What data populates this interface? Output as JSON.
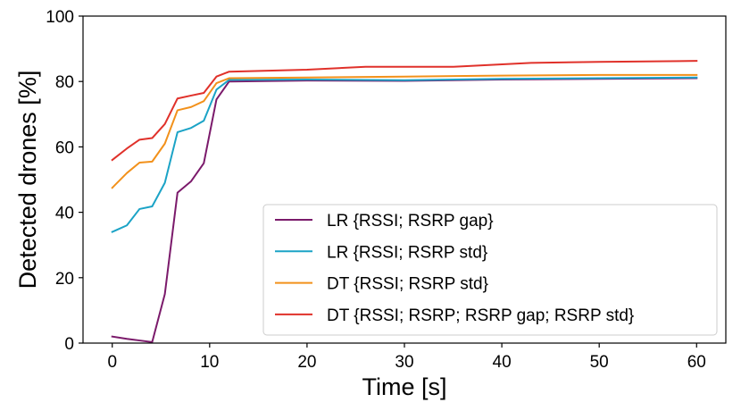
{
  "chart_data": {
    "type": "line",
    "title": "",
    "xlabel": "Time [s]",
    "ylabel": "Detected drones [%]",
    "xlim": [
      -3,
      63
    ],
    "ylim": [
      0,
      100
    ],
    "xticks": [
      0,
      10,
      20,
      30,
      40,
      50,
      60
    ],
    "yticks": [
      0,
      20,
      40,
      60,
      80,
      100
    ],
    "grid": false,
    "legend_position": "bottom-right",
    "series": [
      {
        "name": "LR {RSSI; RSRP gap}",
        "color": "#7b1a6b",
        "x": [
          0,
          1.5,
          2.8,
          4.1,
          5.4,
          6.7,
          8.1,
          9.4,
          10.7,
          12,
          20,
          30,
          40,
          50,
          60
        ],
        "y": [
          2,
          1.3,
          0.8,
          0.3,
          15,
          46,
          49.5,
          55,
          74.5,
          80,
          80.3,
          80.2,
          80.6,
          80.8,
          81
        ]
      },
      {
        "name": "LR {RSSI; RSRP std}",
        "color": "#1ba3c6",
        "x": [
          0,
          1.5,
          2.8,
          4.1,
          5.4,
          6.7,
          8.1,
          9.4,
          10.7,
          12,
          20,
          30,
          40,
          50,
          60
        ],
        "y": [
          34,
          36,
          41,
          41.8,
          49,
          64.5,
          65.8,
          68,
          77.5,
          80.5,
          80.6,
          80.4,
          80.8,
          81,
          81.2
        ]
      },
      {
        "name": "DT {RSSI; RSRP std}",
        "color": "#f2911b",
        "x": [
          0,
          1.5,
          2.8,
          4.1,
          5.4,
          6.7,
          8.1,
          9.4,
          10.7,
          12,
          20,
          30,
          40,
          50,
          60
        ],
        "y": [
          47.5,
          52,
          55.2,
          55.5,
          61,
          71.2,
          72.2,
          74,
          79.5,
          81,
          81.2,
          81.5,
          81.8,
          82,
          82
        ]
      },
      {
        "name": "DT {RSSI; RSRP; RSRP gap; RSRP std}",
        "color": "#e0312a",
        "x": [
          0,
          1.5,
          2.8,
          4.1,
          5.4,
          6.7,
          8.1,
          9.4,
          10.7,
          12,
          20,
          26,
          35,
          43,
          50,
          60
        ],
        "y": [
          56,
          59.5,
          62.2,
          62.7,
          67,
          74.8,
          75.7,
          76.5,
          81.5,
          83,
          83.6,
          84.5,
          84.5,
          85.7,
          86,
          86.3
        ]
      }
    ]
  }
}
